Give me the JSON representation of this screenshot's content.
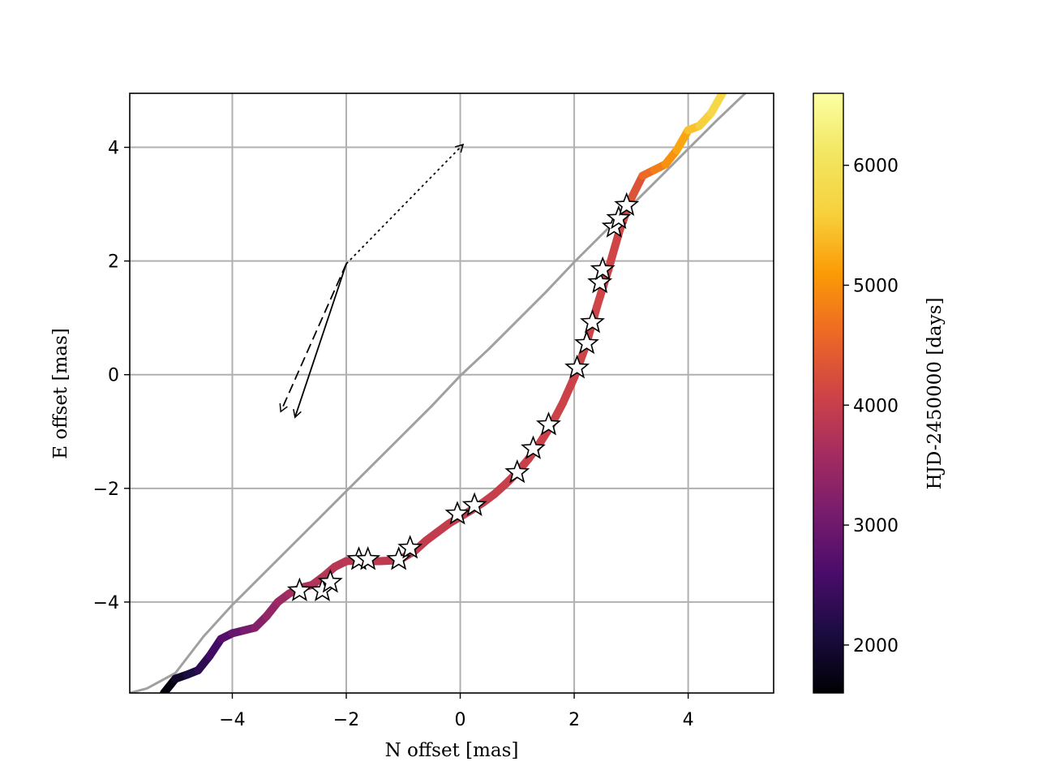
{
  "chart_data": {
    "type": "line",
    "title": "",
    "xlabel": "N offset [mas]",
    "ylabel": "E offset [mas]",
    "xlim": [
      -5.8,
      5.5
    ],
    "ylim": [
      -5.6,
      4.95
    ],
    "xticks": [
      -4,
      -2,
      0,
      2,
      4
    ],
    "yticks": [
      -4,
      -2,
      0,
      2,
      4
    ],
    "xtick_labels": [
      "−4",
      "−2",
      "0",
      "2",
      "4"
    ],
    "ytick_labels": [
      "−4",
      "−2",
      "0",
      "2",
      "4"
    ],
    "grid": true,
    "colorbar": {
      "label": "HJD-2450000 [days]",
      "range": [
        1600,
        6600
      ],
      "ticks": [
        2000,
        3000,
        4000,
        5000,
        6000
      ],
      "tick_labels": [
        "2000",
        "3000",
        "4000",
        "5000",
        "6000"
      ],
      "colormap": "inferno"
    },
    "series": [
      {
        "style": "gray-line",
        "color": "#a0a0a0",
        "x": [
          -5.8,
          -5.5,
          -5.0,
          -4.5,
          -4.0,
          -3.5,
          -3.0,
          -2.5,
          -2.0,
          -1.5,
          -1.0,
          -0.5,
          0.0,
          0.5,
          1.0,
          1.5,
          2.0,
          2.5,
          3.0,
          3.5,
          4.0,
          4.5,
          5.0
        ],
        "y": [
          -5.6,
          -5.52,
          -5.25,
          -4.6,
          -4.05,
          -3.55,
          -3.05,
          -2.55,
          -2.05,
          -1.55,
          -1.05,
          -0.55,
          -0.02,
          0.45,
          0.95,
          1.45,
          1.98,
          2.48,
          2.97,
          3.47,
          3.97,
          4.47,
          4.95
        ]
      },
      {
        "style": "colored-line",
        "x": [
          -5.2,
          -5.0,
          -4.8,
          -4.6,
          -4.4,
          -4.2,
          -4.0,
          -3.8,
          -3.6,
          -3.4,
          -3.2,
          -3.0,
          -2.8,
          -2.6,
          -2.4,
          -2.2,
          -2.0,
          -1.8,
          -1.6,
          -1.4,
          -1.2,
          -1.0,
          -0.8,
          -0.6,
          -0.4,
          -0.2,
          0.0,
          0.2,
          0.4,
          0.6,
          0.8,
          1.0,
          1.2,
          1.4,
          1.6,
          1.8,
          2.0,
          2.2,
          2.4,
          2.6,
          2.8,
          3.0,
          3.2,
          3.4,
          3.6,
          3.8,
          4.0,
          4.2,
          4.4,
          4.6
        ],
        "y": [
          -5.6,
          -5.35,
          -5.28,
          -5.2,
          -4.95,
          -4.65,
          -4.55,
          -4.5,
          -4.45,
          -4.25,
          -4.0,
          -3.85,
          -3.75,
          -3.7,
          -3.55,
          -3.38,
          -3.28,
          -3.27,
          -3.28,
          -3.28,
          -3.27,
          -3.22,
          -3.1,
          -2.92,
          -2.77,
          -2.62,
          -2.5,
          -2.38,
          -2.25,
          -2.1,
          -1.92,
          -1.72,
          -1.48,
          -1.2,
          -0.88,
          -0.5,
          -0.05,
          0.5,
          1.2,
          1.85,
          2.55,
          3.1,
          3.5,
          3.6,
          3.7,
          3.95,
          4.3,
          4.38,
          4.6,
          4.95
        ],
        "t": [
          1700,
          1900,
          2100,
          2300,
          2500,
          2700,
          2900,
          3100,
          3250,
          3400,
          3500,
          3600,
          3700,
          3760,
          3800,
          3830,
          3850,
          3870,
          3890,
          3900,
          3910,
          3920,
          3930,
          3940,
          3950,
          3960,
          3970,
          3980,
          3990,
          4000,
          4010,
          4020,
          4030,
          4040,
          4050,
          4060,
          4070,
          4080,
          4090,
          4100,
          4150,
          4300,
          4600,
          4800,
          5000,
          5200,
          5450,
          5600,
          5750,
          5900
        ]
      }
    ],
    "observations": {
      "marker": "star",
      "x": [
        -2.82,
        -2.42,
        -2.28,
        -1.78,
        -1.62,
        -1.08,
        -0.88,
        -0.05,
        0.25,
        1.0,
        1.28,
        1.55,
        2.05,
        2.22,
        2.32,
        2.45,
        2.5,
        2.7,
        2.78,
        2.92
      ],
      "y": [
        -3.8,
        -3.8,
        -3.65,
        -3.25,
        -3.25,
        -3.25,
        -3.05,
        -2.45,
        -2.3,
        -1.72,
        -1.3,
        -0.88,
        0.12,
        0.55,
        0.92,
        1.62,
        1.85,
        2.6,
        2.75,
        2.98
      ]
    },
    "arrows": [
      {
        "style": "dotted",
        "from": [
          -2.0,
          1.95
        ],
        "to": [
          0.05,
          4.05
        ]
      },
      {
        "style": "dashed",
        "from": [
          -2.0,
          1.95
        ],
        "to": [
          -3.15,
          -0.65
        ]
      },
      {
        "style": "solid",
        "from": [
          -2.0,
          1.95
        ],
        "to": [
          -2.9,
          -0.75
        ]
      }
    ]
  }
}
